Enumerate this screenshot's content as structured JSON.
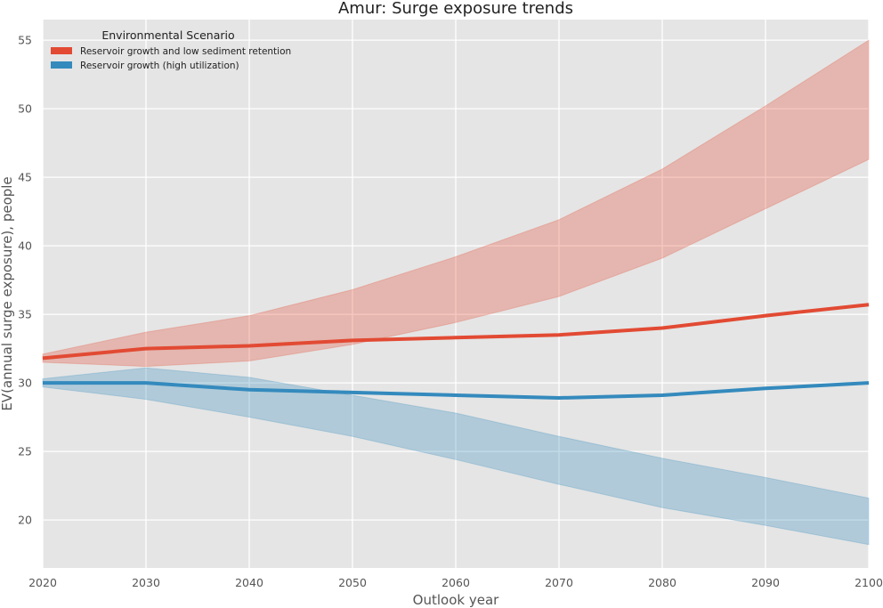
{
  "chart_data": {
    "type": "line",
    "title": "Amur: Surge exposure trends",
    "xlabel": "Outlook year",
    "ylabel": "EV(annual surge exposure), people",
    "x": [
      2020,
      2030,
      2040,
      2050,
      2060,
      2070,
      2080,
      2090,
      2100
    ],
    "xlim": [
      2020,
      2100
    ],
    "ylim": [
      16.5,
      56.5
    ],
    "xticks": [
      2020,
      2030,
      2040,
      2050,
      2060,
      2070,
      2080,
      2090,
      2100
    ],
    "yticks": [
      20,
      25,
      30,
      35,
      40,
      45,
      50,
      55
    ],
    "grid": true,
    "legend_placement": "top-left",
    "legend_title": "Environmental Scenario",
    "series": [
      {
        "name": "Reservoir growth and low sediment retention",
        "color": "#E24A33",
        "values": [
          31.8,
          32.5,
          32.7,
          33.1,
          33.3,
          33.5,
          34.0,
          34.9,
          35.7
        ],
        "lower": [
          31.5,
          31.2,
          31.6,
          32.8,
          34.4,
          36.3,
          39.1,
          42.7,
          46.3
        ],
        "upper": [
          32.1,
          33.7,
          34.9,
          36.8,
          39.2,
          41.9,
          45.6,
          50.2,
          55.0
        ]
      },
      {
        "name": "Reservoir growth (high utilization)",
        "color": "#348ABD",
        "values": [
          30.0,
          30.0,
          29.5,
          29.3,
          29.1,
          28.9,
          29.1,
          29.6,
          30.0
        ],
        "lower": [
          29.7,
          28.8,
          27.5,
          26.1,
          24.4,
          22.6,
          20.9,
          19.6,
          18.2
        ],
        "upper": [
          30.3,
          31.1,
          30.4,
          29.1,
          27.8,
          26.1,
          24.5,
          23.1,
          21.6
        ]
      }
    ]
  }
}
